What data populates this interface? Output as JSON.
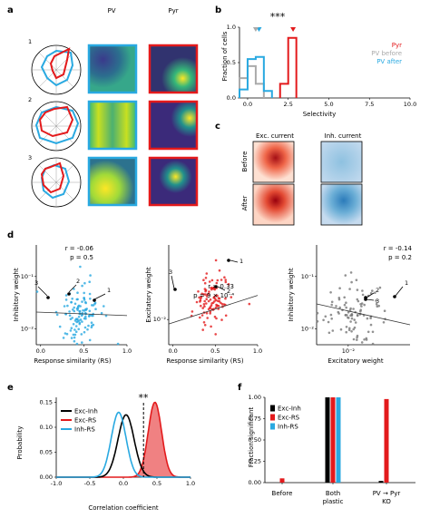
{
  "panels": {
    "a": {
      "letter": "a",
      "col_pv": "PV",
      "col_pyr": "Pyr",
      "rows": [
        "1",
        "2",
        "3"
      ],
      "colors": {
        "pv": "#29a9e1",
        "pyr": "#e31a1c"
      }
    },
    "b": {
      "letter": "b",
      "star_text": "***",
      "xlabel": "Selectivity",
      "ylabel": "Fraction of cells",
      "legend": [
        {
          "name": "Pyr",
          "color": "#e31a1c"
        },
        {
          "name": "PV before",
          "color": "#aaaaaa"
        },
        {
          "name": "PV after",
          "color": "#29a9e1"
        }
      ]
    },
    "c": {
      "letter": "c",
      "col_exc": "Exc. current",
      "col_inh": "Inh. current",
      "row_before": "Before",
      "row_after": "After"
    },
    "d": {
      "letter": "d",
      "plot1": {
        "xlabel": "Response similarity (RS)",
        "ylabel": "Inhibitory weight",
        "r_text": "r = -0.06",
        "p_text": "p = 0.5",
        "color": "#29a9e1"
      },
      "plot2": {
        "xlabel": "Response similarity (RS)",
        "ylabel": "Excitatory weight",
        "r_text": "r = 0.33",
        "p_text": "p = 9 × 10⁻⁴",
        "color": "#e31a1c"
      },
      "plot3": {
        "xlabel": "Excitatory weight",
        "ylabel": "Inhibitory weight",
        "r_text": "r = -0.14",
        "p_text": "p = 0.2",
        "color": "#777777"
      },
      "arrow_labels": [
        "1",
        "2",
        "3"
      ]
    },
    "e": {
      "letter": "e",
      "star_text": "**",
      "xlabel": "Correlation coefficient",
      "ylabel": "Probability"
    },
    "f": {
      "letter": "f",
      "ylabel": "Fraction significant",
      "cat_before": "Before",
      "cat_both_1": "Both",
      "cat_both_2": "plastic",
      "cat_ko_1": "PV → Pyr",
      "cat_ko_2": "KO"
    }
  },
  "chart_data": [
    {
      "id": "b",
      "type": "line",
      "xlabel": "Selectivity",
      "ylabel": "Fraction of cells",
      "xlim": [
        0,
        10
      ],
      "ylim": [
        0,
        1
      ],
      "xticks": [
        0.0,
        2.5,
        5.0,
        7.5,
        10.0
      ],
      "yticks": [
        0.0,
        0.5,
        1.0
      ],
      "legend": "top-right",
      "series": [
        {
          "name": "Pyr",
          "color": "#e31a1c",
          "bins": [
            [
              2.0,
              2.5,
              0.2
            ],
            [
              2.5,
              3.0,
              0.85
            ]
          ]
        },
        {
          "name": "PV before",
          "color": "#aaaaaa",
          "bins": [
            [
              -0.5,
              0.0,
              0.28
            ],
            [
              0.0,
              0.5,
              0.45
            ],
            [
              0.5,
              1.0,
              0.2
            ]
          ]
        },
        {
          "name": "PV after",
          "color": "#29a9e1",
          "bins": [
            [
              -0.5,
              0.0,
              0.12
            ],
            [
              0.0,
              0.5,
              0.55
            ],
            [
              0.5,
              1.0,
              0.58
            ],
            [
              1.0,
              1.5,
              0.1
            ]
          ]
        }
      ],
      "annotations": [
        {
          "text": "***",
          "x": 0.5
        }
      ]
    },
    {
      "id": "d1",
      "type": "scatter",
      "xlabel": "Response similarity (RS)",
      "ylabel": "Inhibitory weight",
      "xlim": [
        -0.05,
        1.0
      ],
      "ylog": true,
      "ylim": [
        0.005,
        0.4
      ],
      "xticks": [
        0.0,
        0.5,
        1.0
      ],
      "yticks": [
        0.01,
        0.1
      ],
      "n_points": 120,
      "fit": {
        "x0": -0.05,
        "y0": 0.021,
        "x1": 1.0,
        "y1": 0.018
      },
      "color": "#29a9e1",
      "r": -0.06,
      "p": 0.5
    },
    {
      "id": "d2",
      "type": "scatter",
      "xlabel": "Response similarity (RS)",
      "ylabel": "Excitatory weight",
      "xlim": [
        -0.05,
        1.0
      ],
      "ylog": true,
      "ylim": [
        0.004,
        0.15
      ],
      "xticks": [
        0.0,
        0.5,
        1.0
      ],
      "yticks": [
        0.01
      ],
      "n_points": 100,
      "fit": {
        "x0": -0.05,
        "y0": 0.0085,
        "x1": 1.0,
        "y1": 0.024
      },
      "color": "#e31a1c",
      "r": 0.33,
      "p": 0.0009
    },
    {
      "id": "d3",
      "type": "scatter",
      "xlabel": "Excitatory weight",
      "ylabel": "Inhibitory weight",
      "xlog": true,
      "ylog": true,
      "xlim": [
        0.004,
        0.06
      ],
      "ylim": [
        0.005,
        0.4
      ],
      "xticks": [
        0.01
      ],
      "yticks": [
        0.01,
        0.1
      ],
      "n_points": 100,
      "fit": {
        "x0": 0.004,
        "y0": 0.03,
        "x1": 0.06,
        "y1": 0.012
      },
      "color": "#777777",
      "r": -0.14,
      "p": 0.2
    },
    {
      "id": "e",
      "type": "line",
      "xlabel": "Correlation coefficient",
      "ylabel": "Probability",
      "xlim": [
        -1.0,
        1.0
      ],
      "ylim": [
        0,
        0.16
      ],
      "xticks": [
        -1.0,
        -0.5,
        0.0,
        0.5,
        1.0
      ],
      "yticks": [
        0.0,
        0.05,
        0.1,
        0.15
      ],
      "legend": "top-left",
      "series": [
        {
          "name": "Exc-Inh",
          "color": "#000000",
          "mu": 0.04,
          "sigma": 0.12,
          "peak": 0.125
        },
        {
          "name": "Exc-RS",
          "color": "#e31a1c",
          "mu": 0.47,
          "sigma": 0.1,
          "peak": 0.15,
          "filled": true
        },
        {
          "name": "Inh-RS",
          "color": "#29a9e1",
          "mu": -0.07,
          "sigma": 0.11,
          "peak": 0.13
        }
      ],
      "annotations": [
        {
          "text": "**",
          "x": 0.3
        }
      ]
    },
    {
      "id": "f",
      "type": "bar",
      "ylabel": "Fraction significant",
      "categories": [
        "Before",
        "Both plastic",
        "PV → Pyr KO"
      ],
      "ylim": [
        0,
        1.0
      ],
      "yticks": [
        0.0,
        0.25,
        0.5,
        0.75,
        1.0
      ],
      "legend": "top-left",
      "series": [
        {
          "name": "Exc-Inh",
          "color": "#000000",
          "values": [
            0.0,
            1.0,
            0.02
          ]
        },
        {
          "name": "Exc-RS",
          "color": "#e31a1c",
          "values": [
            0.05,
            1.0,
            0.98
          ]
        },
        {
          "name": "Inh-RS",
          "color": "#29a9e1",
          "values": [
            0.0,
            1.0,
            0.0
          ]
        }
      ]
    }
  ]
}
